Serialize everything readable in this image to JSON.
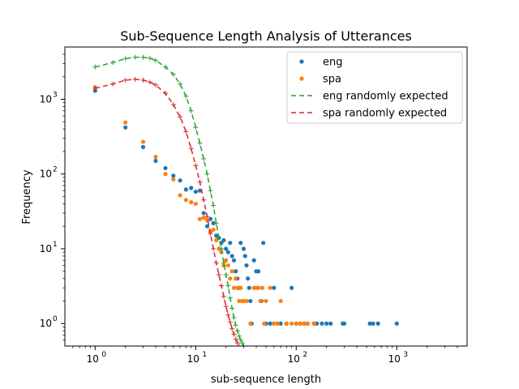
{
  "chart_data": {
    "type": "scatter",
    "title": "Sub-Sequence Length Analysis of Utterances",
    "xlabel": "sub-sequence length",
    "ylabel": "Frequency",
    "xscale": "log",
    "yscale": "log",
    "xlim": [
      0.5,
      5000
    ],
    "ylim": [
      0.5,
      5000
    ],
    "xticks": [
      {
        "value": 1,
        "label": "10",
        "exp": "0"
      },
      {
        "value": 10,
        "label": "10",
        "exp": "1"
      },
      {
        "value": 100,
        "label": "10",
        "exp": "2"
      },
      {
        "value": 1000,
        "label": "10",
        "exp": "3"
      }
    ],
    "yticks": [
      {
        "value": 1,
        "label": "10",
        "exp": "0"
      },
      {
        "value": 10,
        "label": "10",
        "exp": "1"
      },
      {
        "value": 100,
        "label": "10",
        "exp": "2"
      },
      {
        "value": 1000,
        "label": "10",
        "exp": "3"
      }
    ],
    "grid": false,
    "legend_position": "top-right",
    "series": [
      {
        "name": "eng",
        "kind": "scatter",
        "color": "#1f77b4",
        "points": [
          [
            1,
            1300
          ],
          [
            2,
            420
          ],
          [
            3,
            230
          ],
          [
            4,
            150
          ],
          [
            5,
            120
          ],
          [
            6,
            95
          ],
          [
            7,
            82
          ],
          [
            8,
            62
          ],
          [
            9,
            65
          ],
          [
            10,
            58
          ],
          [
            11,
            60
          ],
          [
            12,
            30
          ],
          [
            13,
            20
          ],
          [
            14,
            25
          ],
          [
            15,
            22
          ],
          [
            16,
            15
          ],
          [
            17,
            14
          ],
          [
            18,
            12
          ],
          [
            19,
            13
          ],
          [
            20,
            10
          ],
          [
            21,
            9
          ],
          [
            22,
            12
          ],
          [
            23,
            8
          ],
          [
            24,
            7
          ],
          [
            25,
            5
          ],
          [
            26,
            4
          ],
          [
            27,
            3
          ],
          [
            28,
            12
          ],
          [
            30,
            10
          ],
          [
            31,
            8
          ],
          [
            32,
            6
          ],
          [
            33,
            4
          ],
          [
            34,
            3
          ],
          [
            35,
            2
          ],
          [
            36,
            1
          ],
          [
            38,
            7
          ],
          [
            40,
            5
          ],
          [
            42,
            5
          ],
          [
            45,
            2
          ],
          [
            47,
            12
          ],
          [
            50,
            1
          ],
          [
            55,
            1
          ],
          [
            60,
            3
          ],
          [
            65,
            1
          ],
          [
            70,
            1
          ],
          [
            80,
            1
          ],
          [
            90,
            3
          ],
          [
            100,
            1
          ],
          [
            110,
            1
          ],
          [
            120,
            1
          ],
          [
            130,
            1
          ],
          [
            150,
            1
          ],
          [
            160,
            1
          ],
          [
            180,
            1
          ],
          [
            200,
            1
          ],
          [
            220,
            1
          ],
          [
            290,
            1
          ],
          [
            300,
            1
          ],
          [
            540,
            1
          ],
          [
            580,
            1
          ],
          [
            650,
            1
          ],
          [
            1000,
            1
          ]
        ]
      },
      {
        "name": "spa",
        "kind": "scatter",
        "color": "#ff7f0e",
        "points": [
          [
            1,
            1450
          ],
          [
            2,
            490
          ],
          [
            3,
            270
          ],
          [
            4,
            170
          ],
          [
            5,
            100
          ],
          [
            6,
            85
          ],
          [
            7,
            52
          ],
          [
            8,
            45
          ],
          [
            9,
            42
          ],
          [
            10,
            40
          ],
          [
            11,
            25
          ],
          [
            12,
            26
          ],
          [
            13,
            24
          ],
          [
            14,
            17
          ],
          [
            15,
            18
          ],
          [
            16,
            13
          ],
          [
            17,
            10
          ],
          [
            18,
            9
          ],
          [
            19,
            6
          ],
          [
            20,
            7
          ],
          [
            21,
            6
          ],
          [
            22,
            4
          ],
          [
            23,
            5
          ],
          [
            24,
            3
          ],
          [
            25,
            4
          ],
          [
            26,
            3
          ],
          [
            27,
            2
          ],
          [
            28,
            3
          ],
          [
            29,
            2
          ],
          [
            30,
            2
          ],
          [
            32,
            2
          ],
          [
            35,
            1
          ],
          [
            38,
            3
          ],
          [
            40,
            3
          ],
          [
            42,
            3
          ],
          [
            44,
            2
          ],
          [
            46,
            3
          ],
          [
            48,
            1
          ],
          [
            50,
            2
          ],
          [
            55,
            3
          ],
          [
            60,
            1
          ],
          [
            65,
            1
          ],
          [
            70,
            2
          ],
          [
            80,
            1
          ],
          [
            90,
            1
          ],
          [
            100,
            1
          ],
          [
            110,
            1
          ],
          [
            120,
            1
          ],
          [
            130,
            1
          ],
          [
            150,
            1
          ]
        ]
      },
      {
        "name": "eng randomly expected",
        "kind": "line",
        "dash": "6,4",
        "markers": "plus",
        "color": "#2ca02c",
        "points": [
          [
            1,
            2700
          ],
          [
            1.5,
            3100
          ],
          [
            2,
            3500
          ],
          [
            2.5,
            3650
          ],
          [
            3,
            3650
          ],
          [
            3.5,
            3550
          ],
          [
            4,
            3300
          ],
          [
            5,
            2700
          ],
          [
            6,
            2150
          ],
          [
            7,
            1600
          ],
          [
            8,
            1100
          ],
          [
            9,
            700
          ],
          [
            10,
            420
          ],
          [
            11,
            260
          ],
          [
            12,
            160
          ],
          [
            13,
            100
          ],
          [
            14,
            60
          ],
          [
            15,
            38
          ],
          [
            16,
            22
          ],
          [
            17,
            14
          ],
          [
            18,
            10
          ],
          [
            19,
            6.5
          ],
          [
            20,
            4.5
          ],
          [
            21,
            3.2
          ],
          [
            22,
            2.2
          ],
          [
            23,
            1.6
          ],
          [
            24,
            1.2
          ],
          [
            25,
            0.95
          ],
          [
            26,
            0.8
          ],
          [
            27,
            0.68
          ],
          [
            28,
            0.6
          ],
          [
            29,
            0.55
          ],
          [
            30,
            0.5
          ]
        ]
      },
      {
        "name": "spa randomly expected",
        "kind": "line",
        "dash": "6,4",
        "markers": "plus",
        "color": "#d62728",
        "points": [
          [
            1,
            1400
          ],
          [
            1.5,
            1600
          ],
          [
            2,
            1800
          ],
          [
            2.5,
            1850
          ],
          [
            3,
            1800
          ],
          [
            3.5,
            1700
          ],
          [
            4,
            1550
          ],
          [
            5,
            1200
          ],
          [
            6,
            850
          ],
          [
            7,
            580
          ],
          [
            8,
            370
          ],
          [
            9,
            220
          ],
          [
            10,
            130
          ],
          [
            11,
            78
          ],
          [
            12,
            45
          ],
          [
            13,
            27
          ],
          [
            14,
            16
          ],
          [
            15,
            10
          ],
          [
            16,
            6.5
          ],
          [
            17,
            4.5
          ],
          [
            18,
            3.2
          ],
          [
            19,
            2.3
          ],
          [
            20,
            1.7
          ],
          [
            21,
            1.3
          ],
          [
            22,
            1.05
          ],
          [
            23,
            0.85
          ],
          [
            24,
            0.72
          ],
          [
            25,
            0.62
          ],
          [
            26,
            0.55
          ],
          [
            27,
            0.5
          ]
        ]
      }
    ]
  }
}
